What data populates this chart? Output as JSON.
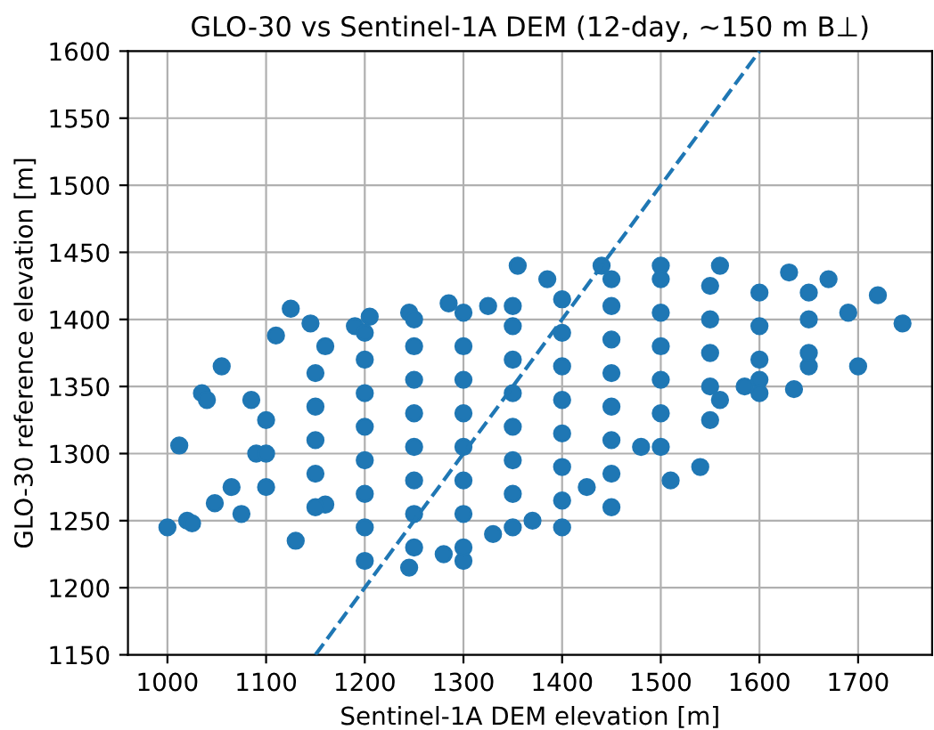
{
  "chart_data": {
    "type": "scatter",
    "title": "GLO-30 vs Sentinel-1A DEM (12-day, ~150 m B⊥)",
    "xlabel": "Sentinel-1A DEM elevation [m]",
    "ylabel": "GLO-30 reference elevation [m]",
    "xlim": [
      960,
      1775
    ],
    "ylim": [
      1150,
      1600
    ],
    "xticks": [
      1000,
      1100,
      1200,
      1300,
      1400,
      1500,
      1600,
      1700
    ],
    "yticks": [
      1150,
      1200,
      1250,
      1300,
      1350,
      1400,
      1450,
      1500,
      1550,
      1600
    ],
    "grid": true,
    "series": [
      {
        "marker": "circle",
        "color": "#1f77b4",
        "x": [
          1000,
          1012,
          1020,
          1025,
          1035,
          1040,
          1048,
          1055,
          1065,
          1075,
          1085,
          1090,
          1110,
          1125,
          1130,
          1145,
          1160,
          1200,
          1205,
          1245,
          1280,
          1300,
          1330,
          1370,
          1400,
          1425,
          1450,
          1480,
          1510,
          1540,
          1560,
          1585,
          1600,
          1635,
          1650,
          1700,
          1720,
          1745,
          1690,
          1670,
          1630,
          1560,
          1500,
          1440,
          1385,
          1355,
          1325,
          1285,
          1245,
          1190,
          1160,
          1100,
          1100,
          1100,
          1150,
          1150,
          1150,
          1150,
          1150,
          1200,
          1200,
          1200,
          1200,
          1200,
          1200,
          1200,
          1250,
          1250,
          1250,
          1250,
          1250,
          1250,
          1250,
          1250,
          1300,
          1300,
          1300,
          1300,
          1300,
          1300,
          1300,
          1300,
          1350,
          1350,
          1350,
          1350,
          1350,
          1350,
          1350,
          1350,
          1400,
          1400,
          1400,
          1400,
          1400,
          1400,
          1400,
          1450,
          1450,
          1450,
          1450,
          1450,
          1450,
          1450,
          1500,
          1500,
          1500,
          1500,
          1500,
          1500,
          1550,
          1550,
          1550,
          1550,
          1550,
          1600,
          1600,
          1600,
          1600,
          1650,
          1650,
          1650
        ],
        "values": [
          1245,
          1306,
          1250,
          1248,
          1345,
          1340,
          1263,
          1365,
          1275,
          1255,
          1340,
          1300,
          1388,
          1408,
          1235,
          1397,
          1262,
          1220,
          1402,
          1215,
          1225,
          1220,
          1240,
          1250,
          1245,
          1275,
          1260,
          1305,
          1280,
          1290,
          1340,
          1350,
          1355,
          1348,
          1365,
          1365,
          1418,
          1397,
          1405,
          1430,
          1435,
          1440,
          1440,
          1440,
          1430,
          1440,
          1410,
          1412,
          1405,
          1395,
          1380,
          1275,
          1300,
          1325,
          1260,
          1285,
          1310,
          1335,
          1360,
          1245,
          1270,
          1295,
          1320,
          1345,
          1370,
          1390,
          1230,
          1255,
          1280,
          1305,
          1330,
          1355,
          1380,
          1400,
          1230,
          1255,
          1280,
          1305,
          1330,
          1355,
          1380,
          1405,
          1245,
          1270,
          1295,
          1320,
          1345,
          1370,
          1395,
          1410,
          1265,
          1290,
          1315,
          1340,
          1365,
          1390,
          1415,
          1285,
          1310,
          1335,
          1360,
          1385,
          1410,
          1430,
          1305,
          1330,
          1355,
          1380,
          1405,
          1430,
          1325,
          1350,
          1375,
          1400,
          1425,
          1345,
          1370,
          1395,
          1420,
          1375,
          1400,
          1420
        ]
      },
      {
        "type": "line",
        "marker": "none",
        "color": "#1f77b4",
        "line_style": "dashed",
        "x": [
          1150,
          1600
        ],
        "values": [
          1150,
          1600
        ]
      }
    ]
  }
}
